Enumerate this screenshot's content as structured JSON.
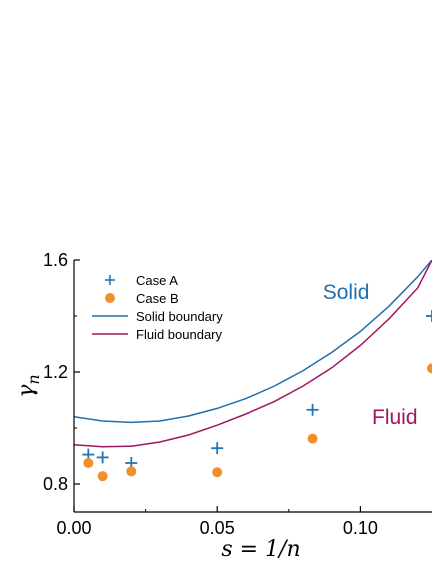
{
  "chart_data": {
    "type": "scatter",
    "xlabel": "s = 1/n",
    "ylabel": "γ_n",
    "xlim": [
      0.0,
      0.125
    ],
    "ylim": [
      0.7,
      1.6
    ],
    "x_ticks": [
      0.0,
      0.05,
      0.1
    ],
    "x_tick_labels": [
      "0.00",
      "0.05",
      "0.10"
    ],
    "y_ticks": [
      0.8,
      1.2,
      1.6
    ],
    "y_tick_labels": [
      "0.8",
      "1.2",
      "1.6"
    ],
    "grid": false,
    "legend_position": "top-left",
    "series": [
      {
        "name": "Case A",
        "kind": "scatter",
        "marker": "plus",
        "color": "#1f77b4",
        "x": [
          0.005,
          0.01,
          0.02,
          0.05,
          0.0833,
          0.125
        ],
        "y": [
          0.905,
          0.895,
          0.875,
          0.928,
          1.065,
          1.4
        ]
      },
      {
        "name": "Case B",
        "kind": "scatter",
        "marker": "circle",
        "color": "#f28e2b",
        "x": [
          0.005,
          0.01,
          0.02,
          0.05,
          0.0833,
          0.125
        ],
        "y": [
          0.875,
          0.828,
          0.845,
          0.842,
          0.962,
          1.213
        ]
      },
      {
        "name": "Solid boundary",
        "kind": "line",
        "color": "#1f6fae",
        "x": [
          0.0,
          0.01,
          0.02,
          0.03,
          0.04,
          0.05,
          0.06,
          0.07,
          0.08,
          0.09,
          0.1,
          0.11,
          0.12,
          0.125
        ],
        "y": [
          1.04,
          1.025,
          1.02,
          1.025,
          1.043,
          1.07,
          1.105,
          1.15,
          1.205,
          1.27,
          1.345,
          1.435,
          1.54,
          1.6
        ]
      },
      {
        "name": "Fluid boundary",
        "kind": "line",
        "color": "#a0175e",
        "x": [
          0.0,
          0.01,
          0.02,
          0.03,
          0.04,
          0.05,
          0.06,
          0.07,
          0.08,
          0.09,
          0.1,
          0.11,
          0.12,
          0.125
        ],
        "y": [
          0.94,
          0.933,
          0.935,
          0.95,
          0.975,
          1.01,
          1.05,
          1.095,
          1.15,
          1.215,
          1.295,
          1.39,
          1.5,
          1.6
        ]
      }
    ],
    "annotations": [
      {
        "text": "Solid",
        "x": 0.095,
        "y": 1.46,
        "color": "#1f6fae"
      },
      {
        "text": "Fluid",
        "x": 0.112,
        "y": 1.015,
        "color": "#a0175e"
      }
    ]
  }
}
